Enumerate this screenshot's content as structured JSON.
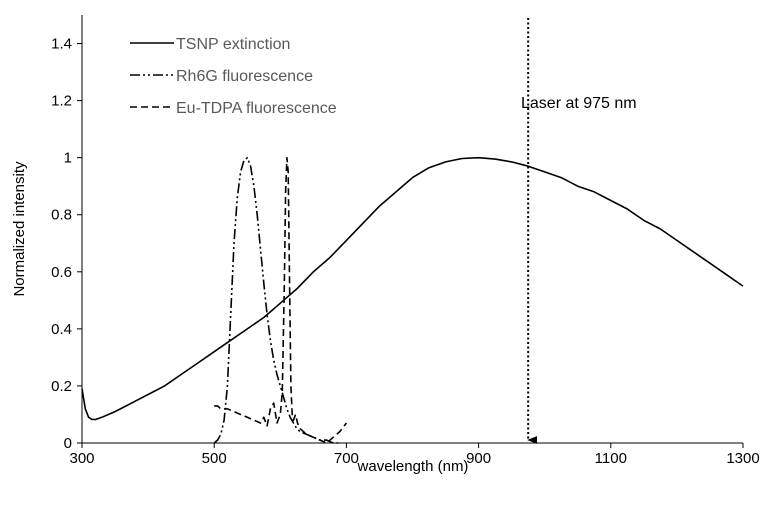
{
  "chart_data": {
    "type": "line",
    "title": "",
    "xlabel": "wavelength (nm)",
    "ylabel": "Normalized intensity",
    "xlim": [
      300,
      1300
    ],
    "ylim": [
      0,
      1.5
    ],
    "x_ticks": [
      300,
      500,
      700,
      900,
      1100,
      1300
    ],
    "y_ticks": [
      0,
      0.2,
      0.4,
      0.6,
      0.8,
      1,
      1.2,
      1.4
    ],
    "x_tick_labels": [
      "300",
      "500",
      "700",
      "900",
      "1100",
      "1300"
    ],
    "y_tick_labels": [
      "0",
      "0.2",
      "0.4",
      "0.6",
      "0.8",
      "1",
      "1.2",
      "1.4"
    ],
    "grid": false,
    "legend_position": "top-left",
    "series": [
      {
        "name": "TSNP extinction",
        "dash": "solid",
        "color": "#000000",
        "x": [
          300,
          305,
          310,
          315,
          320,
          330,
          340,
          350,
          375,
          400,
          425,
          450,
          475,
          500,
          525,
          550,
          575,
          600,
          625,
          650,
          675,
          700,
          725,
          750,
          775,
          800,
          825,
          850,
          875,
          900,
          925,
          950,
          975,
          1000,
          1025,
          1050,
          1075,
          1100,
          1125,
          1150,
          1175,
          1200,
          1225,
          1250,
          1275,
          1300
        ],
        "y": [
          0.19,
          0.12,
          0.09,
          0.083,
          0.082,
          0.09,
          0.1,
          0.11,
          0.14,
          0.17,
          0.2,
          0.24,
          0.28,
          0.32,
          0.36,
          0.4,
          0.44,
          0.49,
          0.54,
          0.6,
          0.65,
          0.71,
          0.77,
          0.83,
          0.88,
          0.93,
          0.965,
          0.985,
          0.997,
          1.0,
          0.995,
          0.985,
          0.97,
          0.95,
          0.93,
          0.9,
          0.88,
          0.85,
          0.82,
          0.78,
          0.75,
          0.71,
          0.67,
          0.63,
          0.59,
          0.55
        ]
      },
      {
        "name": "Rh6G fluorescence",
        "dash": "dash-dot-dot",
        "color": "#000000",
        "x": [
          500,
          505,
          510,
          515,
          520,
          525,
          530,
          535,
          540,
          545,
          550,
          555,
          560,
          565,
          570,
          575,
          580,
          585,
          590,
          595,
          600,
          605,
          610,
          615,
          620,
          625,
          630,
          640,
          650,
          660,
          670,
          680,
          690
        ],
        "y": [
          0.0,
          0.01,
          0.03,
          0.08,
          0.2,
          0.45,
          0.7,
          0.86,
          0.95,
          0.99,
          1.0,
          0.97,
          0.9,
          0.8,
          0.68,
          0.56,
          0.45,
          0.36,
          0.29,
          0.24,
          0.2,
          0.16,
          0.12,
          0.09,
          0.07,
          0.05,
          0.04,
          0.03,
          0.02,
          0.01,
          0.01,
          0.0,
          0.0
        ]
      },
      {
        "name": "Eu-TDPA fluorescence",
        "dash": "dash",
        "color": "#000000",
        "x": [
          500,
          505,
          510,
          520,
          530,
          540,
          550,
          560,
          570,
          575,
          580,
          585,
          590,
          595,
          600,
          603,
          606,
          608,
          610,
          612,
          614,
          616,
          618,
          620,
          623,
          626,
          630,
          640,
          650,
          660,
          670,
          680,
          690,
          700
        ],
        "y": [
          0.13,
          0.13,
          0.12,
          0.12,
          0.11,
          0.1,
          0.09,
          0.08,
          0.07,
          0.09,
          0.06,
          0.12,
          0.14,
          0.07,
          0.1,
          0.18,
          0.55,
          0.88,
          1.0,
          0.95,
          0.55,
          0.2,
          0.1,
          0.08,
          0.1,
          0.07,
          0.05,
          0.03,
          0.02,
          0.01,
          0.0,
          0.02,
          0.04,
          0.07
        ]
      }
    ],
    "annotations": [
      {
        "text": "Laser at 975 nm",
        "x": 975,
        "style": "dotted-arrow"
      }
    ]
  }
}
